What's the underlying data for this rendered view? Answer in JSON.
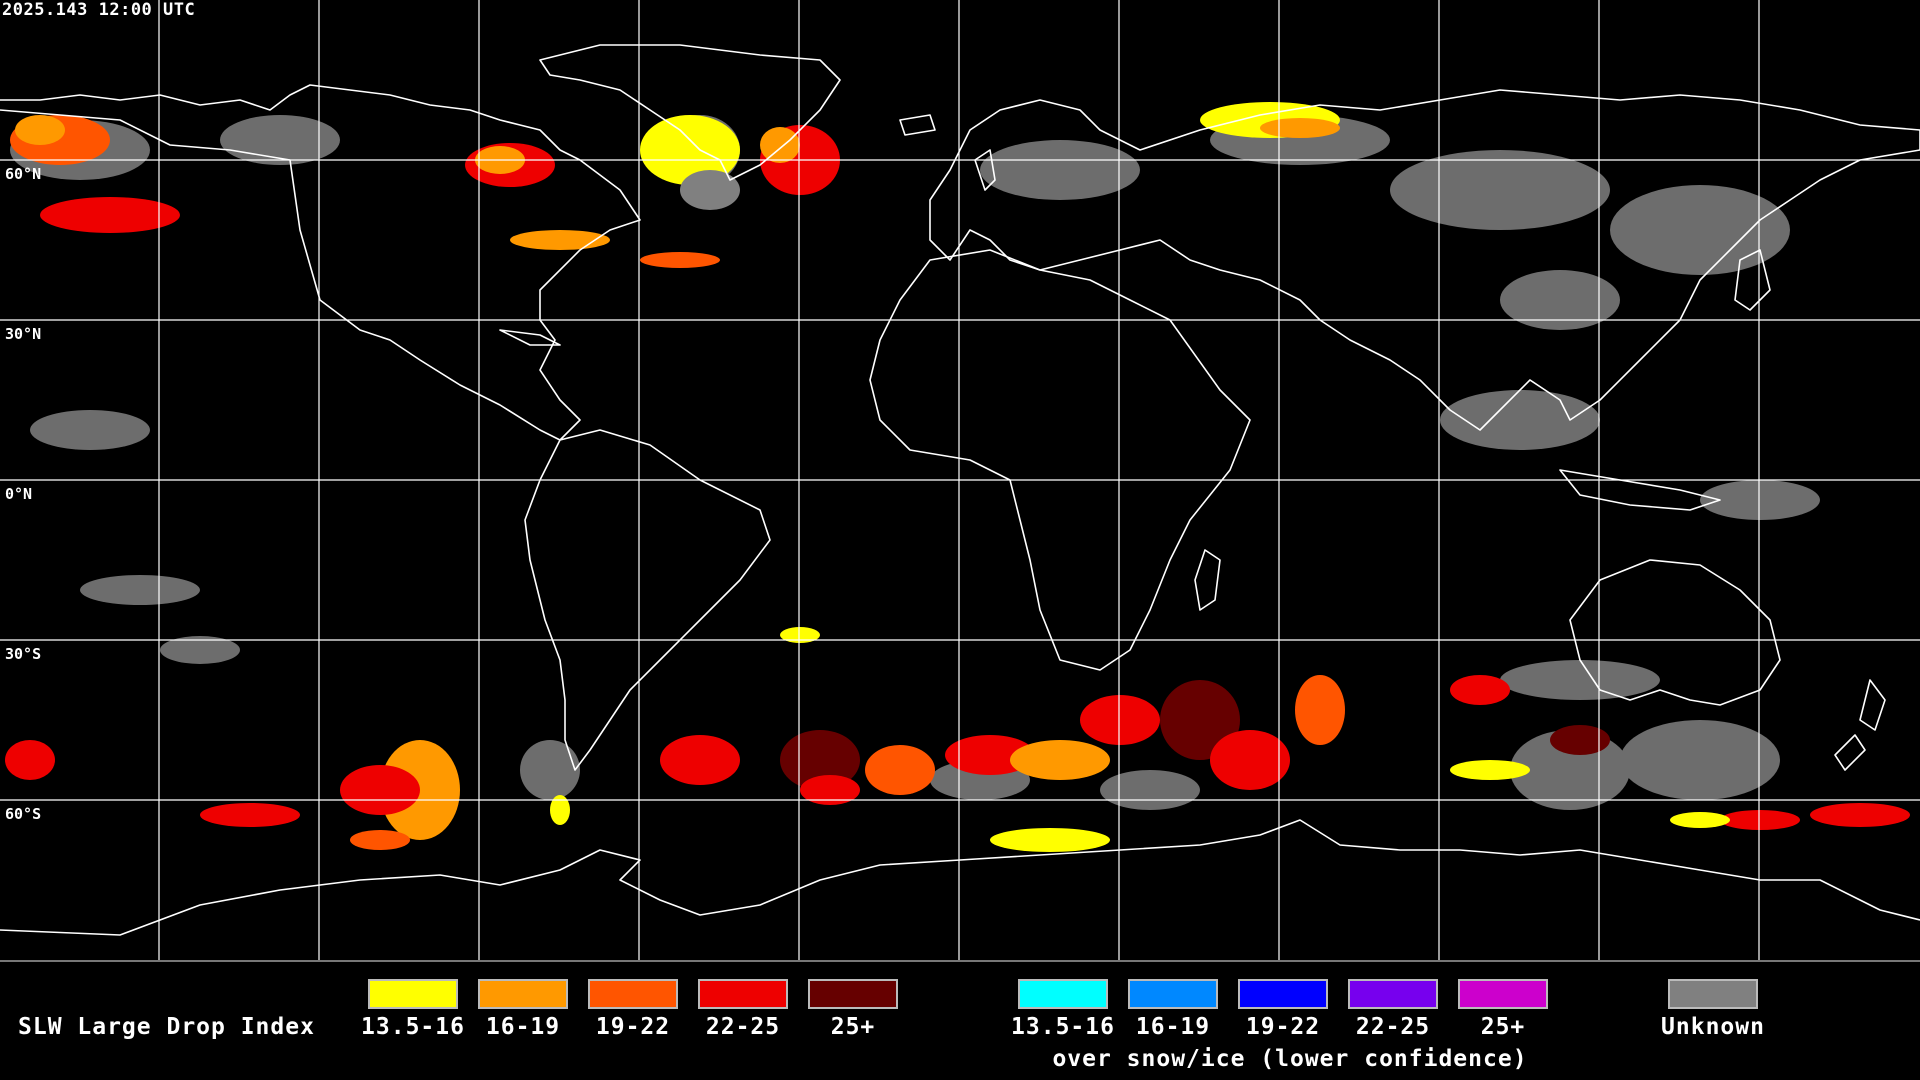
{
  "timestamp": "2025.143 12:00 UTC",
  "lat_labels": [
    "60°N",
    "30°N",
    "0°N",
    "30°S",
    "60°S"
  ],
  "legend": {
    "title": "SLW Large Drop Index",
    "liquid": [
      {
        "label": "13.5-16",
        "color": "#ffff00"
      },
      {
        "label": "16-19",
        "color": "#ff9900"
      },
      {
        "label": "19-22",
        "color": "#ff5500"
      },
      {
        "label": "22-25",
        "color": "#ee0000"
      },
      {
        "label": "25+",
        "color": "#660000"
      }
    ],
    "snow_ice": [
      {
        "label": "13.5-16",
        "color": "#00ffff"
      },
      {
        "label": "16-19",
        "color": "#0088ff"
      },
      {
        "label": "19-22",
        "color": "#0000ff"
      },
      {
        "label": "22-25",
        "color": "#7700ee"
      },
      {
        "label": "25+",
        "color": "#cc00cc"
      }
    ],
    "snow_ice_caption": "over snow/ice (lower confidence)",
    "unknown": {
      "label": "Unknown",
      "color": "#808080"
    }
  },
  "colors": {
    "background": "#000000",
    "coastline": "#ffffff",
    "grid": "#ffffff",
    "unknown": "#808080"
  }
}
